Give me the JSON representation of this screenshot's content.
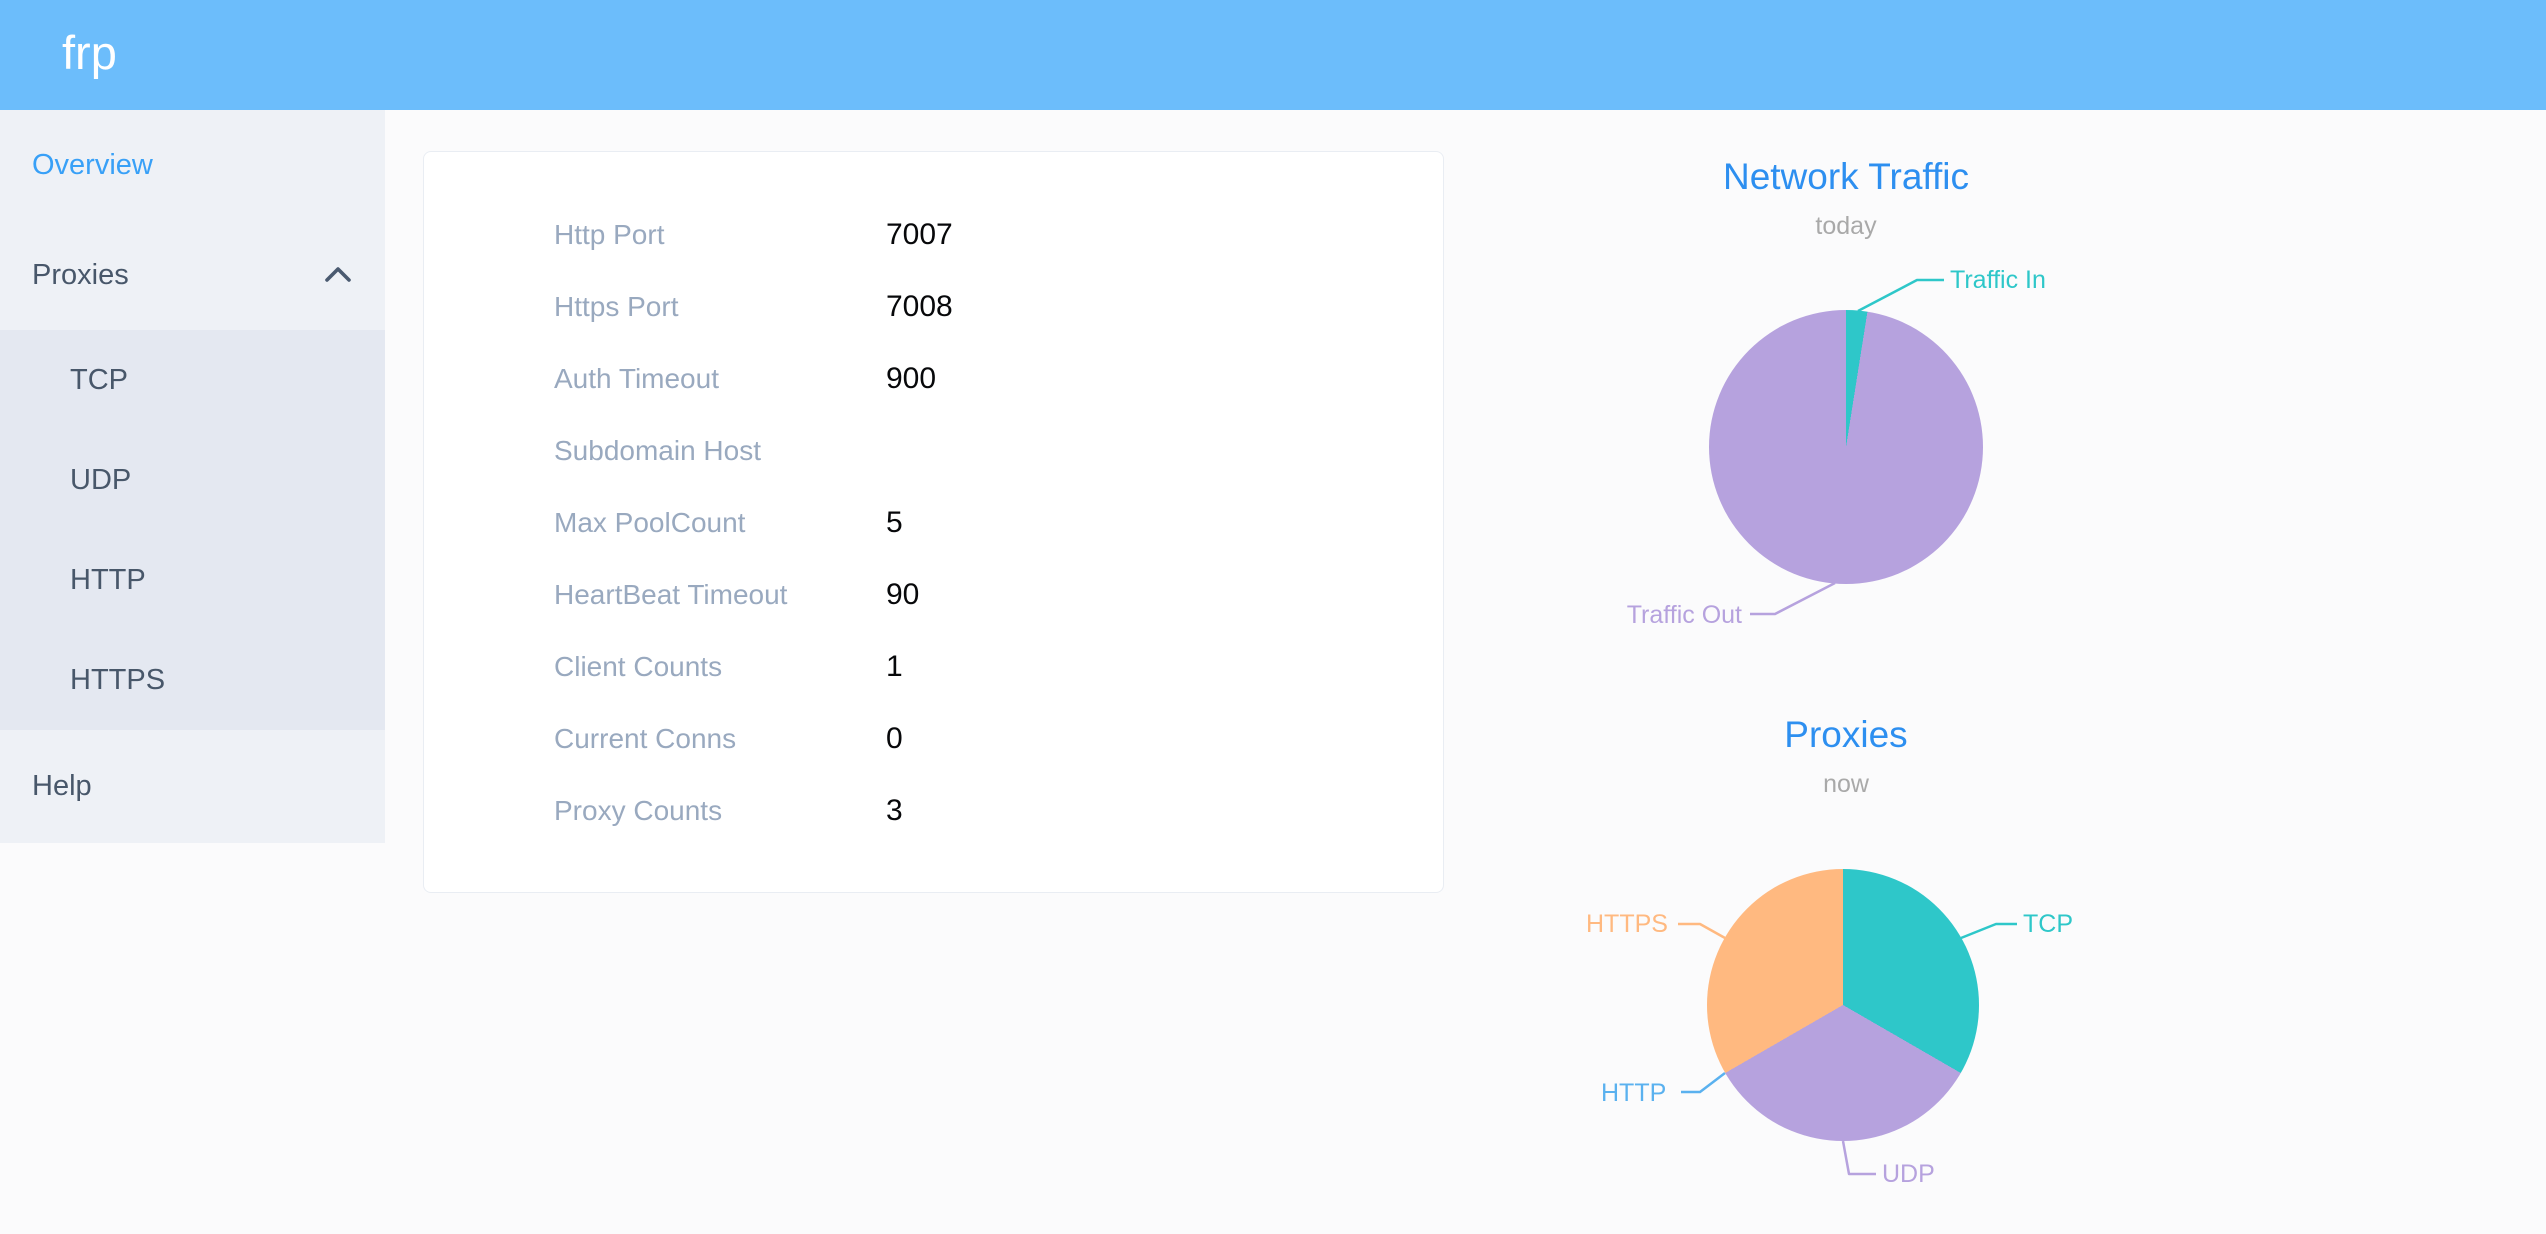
{
  "header": {
    "logo": "frp"
  },
  "sidebar": {
    "items": [
      {
        "label": "Overview",
        "active": true
      },
      {
        "label": "Proxies",
        "expanded": true,
        "children": [
          {
            "label": "TCP"
          },
          {
            "label": "UDP"
          },
          {
            "label": "HTTP"
          },
          {
            "label": "HTTPS"
          }
        ]
      },
      {
        "label": "Help"
      }
    ]
  },
  "overview": {
    "rows": [
      {
        "label": "Http Port",
        "value": "7007"
      },
      {
        "label": "Https Port",
        "value": "7008"
      },
      {
        "label": "Auth Timeout",
        "value": "900"
      },
      {
        "label": "Subdomain Host",
        "value": ""
      },
      {
        "label": "Max PoolCount",
        "value": "5"
      },
      {
        "label": "HeartBeat Timeout",
        "value": "90"
      },
      {
        "label": "Client Counts",
        "value": "1"
      },
      {
        "label": "Current Conns",
        "value": "0"
      },
      {
        "label": "Proxy Counts",
        "value": "3"
      }
    ]
  },
  "chart_data": [
    {
      "type": "pie",
      "title": "Network Traffic",
      "subtitle": "today",
      "values_unit": "percent",
      "legend_position": "callout-labels",
      "series": [
        {
          "name": "Traffic In",
          "value": 2.5,
          "color": "#2ec7c9"
        },
        {
          "name": "Traffic Out",
          "value": 97.5,
          "color": "#b6a2de"
        }
      ]
    },
    {
      "type": "pie",
      "title": "Proxies",
      "subtitle": "now",
      "values_unit": "count",
      "legend_position": "callout-labels",
      "series": [
        {
          "name": "TCP",
          "value": 1,
          "color": "#2ec7c9"
        },
        {
          "name": "UDP",
          "value": 1,
          "color": "#b6a2de"
        },
        {
          "name": "HTTP",
          "value": 0,
          "color": "#5ab1ef"
        },
        {
          "name": "HTTPS",
          "value": 1,
          "color": "#ffb980"
        }
      ]
    }
  ],
  "colors": {
    "header_bar": "#6cbdfb",
    "active_menu_item": "#38a0f7",
    "sidebar_bg": "#eef1f6",
    "submenu_bg": "#e4e8f1",
    "sidebar_text": "#48576a",
    "chart_title": "#2d8ff0",
    "card_label": "#99a9bf"
  }
}
